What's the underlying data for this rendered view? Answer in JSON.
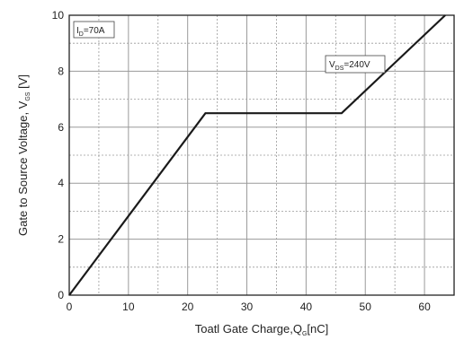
{
  "chart_data": {
    "type": "line",
    "x": [
      0,
      23,
      46,
      63.5
    ],
    "y": [
      0,
      6.5,
      6.5,
      10
    ],
    "xlim": [
      0,
      65
    ],
    "ylim": [
      0,
      10
    ],
    "xticks": [
      0,
      10,
      20,
      30,
      40,
      50,
      60
    ],
    "yticks": [
      0,
      2,
      4,
      6,
      8,
      10
    ],
    "xminor": [
      5,
      15,
      25,
      35,
      45,
      55
    ],
    "yminor": [
      1,
      3,
      5,
      7,
      9
    ],
    "grid": true,
    "xlabel": {
      "main": "Toatl Gate Charge,Q",
      "sub": "G",
      "tail": "[nC]"
    },
    "ylabel": {
      "main": "Gate to Source Voltage, V",
      "sub": "GS",
      "tail": " [V]"
    },
    "annotations": [
      {
        "prefix": "I",
        "sub": "D",
        "rest": "=70A"
      },
      {
        "prefix": "V",
        "sub": "DS",
        "rest": "=240V"
      }
    ],
    "colors": {
      "line": "#1a1a1a",
      "grid": "#9a9a9a",
      "axis": "#222222"
    }
  }
}
